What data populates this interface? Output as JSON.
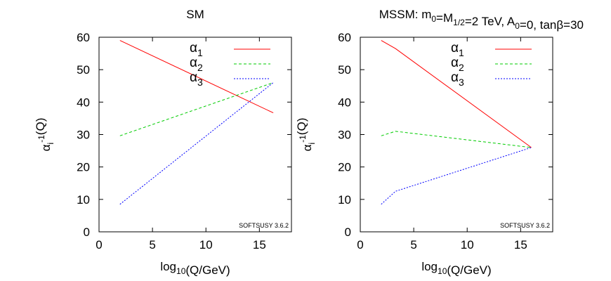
{
  "chart_data": [
    {
      "type": "line",
      "title": "SM",
      "xlabel": "log10(Q/GeV)",
      "ylabel": "αi-1(Q)",
      "xlim": [
        0,
        18
      ],
      "ylim": [
        0,
        60
      ],
      "xticks": [
        0,
        5,
        10,
        15
      ],
      "yticks": [
        0,
        10,
        20,
        30,
        40,
        50,
        60
      ],
      "grid": false,
      "legend_position": "top-right",
      "annotation": "SOFTSUSY 3.6.2",
      "series": [
        {
          "name": "α1",
          "color": "#ff0000",
          "dash": "solid",
          "x": [
            1.96,
            16.3
          ],
          "y": [
            59.0,
            36.7
          ]
        },
        {
          "name": "α2",
          "color": "#00cc00",
          "dash": "dashed",
          "x": [
            1.96,
            16.3
          ],
          "y": [
            29.6,
            46.0
          ]
        },
        {
          "name": "α3",
          "color": "#0000ff",
          "dash": "dotted",
          "x": [
            1.96,
            16.3
          ],
          "y": [
            8.5,
            46.0
          ]
        }
      ]
    },
    {
      "type": "line",
      "title": "MSSM: m0=M1/2=2 TeV, A0=0, tanβ=30",
      "xlabel": "log10(Q/GeV)",
      "ylabel": "αi-1(Q)",
      "xlim": [
        0,
        18
      ],
      "ylim": [
        0,
        60
      ],
      "xticks": [
        0,
        5,
        10,
        15
      ],
      "yticks": [
        0,
        10,
        20,
        30,
        40,
        50,
        60
      ],
      "grid": false,
      "legend_position": "top-right",
      "annotation": "SOFTSUSY 3.6.2",
      "series": [
        {
          "name": "α1",
          "color": "#ff0000",
          "dash": "solid",
          "x": [
            1.96,
            3.3,
            16.0
          ],
          "y": [
            59.0,
            56.5,
            26.0
          ]
        },
        {
          "name": "α2",
          "color": "#00cc00",
          "dash": "dashed",
          "x": [
            1.96,
            3.3,
            16.0
          ],
          "y": [
            29.6,
            31.0,
            26.0
          ]
        },
        {
          "name": "α3",
          "color": "#0000ff",
          "dash": "dotted",
          "x": [
            1.96,
            3.3,
            16.0
          ],
          "y": [
            8.5,
            12.5,
            26.0
          ]
        }
      ]
    }
  ]
}
